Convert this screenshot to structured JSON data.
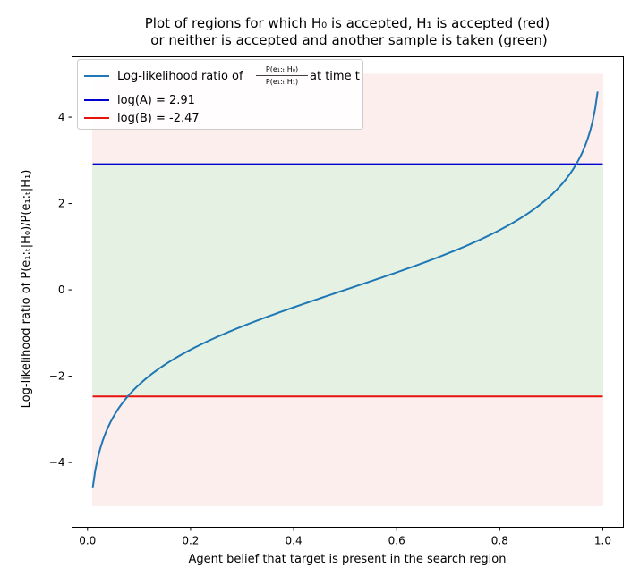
{
  "chart_data": {
    "type": "line",
    "title_line1": "Plot of regions for which H₀ is accepted, H₁ is accepted (red)",
    "title_line2": "or neither is accepted and another sample is taken (green)",
    "xlabel": "Agent belief that target is present in the search region",
    "ylabel": "Log-likelihood ratio of P(e₁:ₜ|H₀)/P(e₁:ₜ|H₁)",
    "xlim": [
      -0.03,
      1.04
    ],
    "ylim": [
      -5.5,
      5.4
    ],
    "xticks": [
      0.0,
      0.2,
      0.4,
      0.6,
      0.8,
      1.0
    ],
    "xtick_labels": [
      "0.0",
      "0.2",
      "0.4",
      "0.6",
      "0.8",
      "1.0"
    ],
    "yticks": [
      -4,
      -2,
      0,
      2,
      4
    ],
    "ytick_labels": [
      "−4",
      "−2",
      "0",
      "2",
      "4"
    ],
    "regions": [
      {
        "name": "H1 accepted (red)",
        "x": [
          0.01,
          1.0
        ],
        "y": [
          -5,
          -2.47
        ],
        "color": "#fdeeee"
      },
      {
        "name": "sample again (green)",
        "x": [
          0.01,
          1.0
        ],
        "y": [
          -2.47,
          2.91
        ],
        "color": "#e4f1e3"
      },
      {
        "name": "H0 accepted (red)",
        "x": [
          0.01,
          1.0
        ],
        "y": [
          2.91,
          5
        ],
        "color": "#fdeeee"
      }
    ],
    "series": [
      {
        "name": "Log-likelihood ratio of P(e₁:ₜ|H₀)/P(e₁:ₜ|H₁) at time t",
        "function": "log(p/(1-p))",
        "x_range": [
          0.01,
          0.99
        ],
        "color": "#1f77b4"
      },
      {
        "name": "log(A) = 2.91",
        "y": 2.91,
        "color": "#0000cc"
      },
      {
        "name": "log(B) = -2.47",
        "y": -2.47,
        "color": "#e8120c"
      }
    ],
    "legend": {
      "curve_prefix": "Log-likelihood ratio of",
      "curve_frac_num": "P(e₁:ₜ|H₀)",
      "curve_frac_den": "P(e₁:ₜ|H₁)",
      "curve_suffix": "at time t",
      "logA_label": "log(A) = 2.91",
      "logB_label": "log(B) = -2.47",
      "placement": "top-left"
    },
    "grid": false
  }
}
